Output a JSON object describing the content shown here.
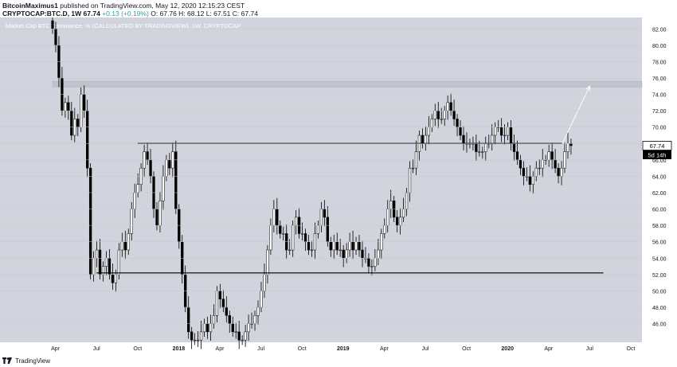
{
  "header": {
    "author": "BitcoinMaximus1",
    "publish_text": "published on TradingView.com, May 12, 2020 12:15:23 CEST",
    "symbol": "CRYPTOCAP:BTC.D, 1W",
    "last_value": "67.74",
    "change": "+0.13 (+0.19%)",
    "ohlc_o": "O: 67.76",
    "ohlc_h": "H: 68.12",
    "ohlc_l": "L: 67.51",
    "ohlc_c": "C: 67.74"
  },
  "footer": {
    "brand": "TradingView"
  },
  "colors": {
    "plot_bg": "#d1d4dc",
    "candle_up": "#ffffff",
    "candle_down": "#000000",
    "resistance_zone": "#bfc3cc",
    "price_tag_bg": "#ffffff",
    "countdown_bg": "#000000"
  },
  "chart_data": {
    "type": "candlestick",
    "title": "Market Cap BTC Dominance, %  (CALCULATED BY TRADINGVIEW), 1W, CRYPTOCAP",
    "ylim": [
      44.5,
      83
    ],
    "y_ticks": [
      "82.00",
      "80.00",
      "78.00",
      "76.00",
      "74.00",
      "72.00",
      "70.00",
      "68.00",
      "66.00",
      "64.00",
      "62.00",
      "60.00",
      "58.00",
      "56.00",
      "54.00",
      "52.00",
      "50.00",
      "48.00",
      "46.00"
    ],
    "x_ticks": [
      "Apr",
      "Jul",
      "Oct",
      "2018",
      "Apr",
      "Jul",
      "Oct",
      "2019",
      "Apr",
      "Jul",
      "Oct",
      "2020",
      "Apr",
      "Jul",
      "Oct"
    ],
    "last_price_label": "67.74",
    "countdown_label": "5d 14h",
    "resistance_zone": [
      74.9,
      75.6
    ],
    "horizontal_lines": [
      {
        "name": "resistance",
        "value": 68.0,
        "from": "2017-10",
        "to": "2020-05"
      },
      {
        "name": "support",
        "value": 52.2,
        "from": "2017-07",
        "to": "2020-08"
      }
    ],
    "projection_arrow": {
      "from": [
        "2020-05",
        68.0
      ],
      "to": [
        "2020-07",
        75.0
      ]
    },
    "closes": [
      82,
      80,
      76,
      72,
      73,
      72,
      69,
      71,
      70,
      74,
      72,
      65,
      52,
      54,
      55,
      52,
      53,
      54,
      52,
      51,
      52,
      55,
      56,
      55,
      57,
      60,
      62,
      63,
      65,
      67,
      66,
      64,
      60,
      58,
      61,
      64,
      66,
      65,
      67,
      60,
      56,
      52,
      48,
      45,
      44,
      44,
      44,
      45,
      46,
      45,
      46,
      47,
      50,
      49,
      48,
      47,
      46,
      45,
      45,
      44,
      44,
      45,
      46,
      46,
      47,
      48,
      50,
      52,
      55,
      58,
      60,
      58,
      57,
      57,
      55,
      55,
      58,
      59,
      57,
      57,
      56,
      55,
      55,
      57,
      58,
      60,
      59,
      56,
      55,
      56,
      55,
      55,
      54,
      55,
      56,
      55,
      56,
      55,
      54,
      54,
      53,
      53,
      54,
      55,
      57,
      58,
      60,
      61,
      59,
      58,
      59,
      60,
      62,
      65,
      65,
      67,
      69,
      68,
      69,
      70,
      71,
      72,
      71,
      71,
      72,
      73,
      72,
      71,
      70,
      69,
      68,
      68,
      68,
      68,
      67,
      67,
      67,
      68,
      68,
      69,
      70,
      70,
      69,
      69,
      70,
      68,
      67,
      66,
      65,
      64,
      64,
      63,
      64,
      65,
      65,
      66,
      66,
      67,
      66,
      65,
      64,
      65,
      67,
      68,
      67.74
    ]
  }
}
